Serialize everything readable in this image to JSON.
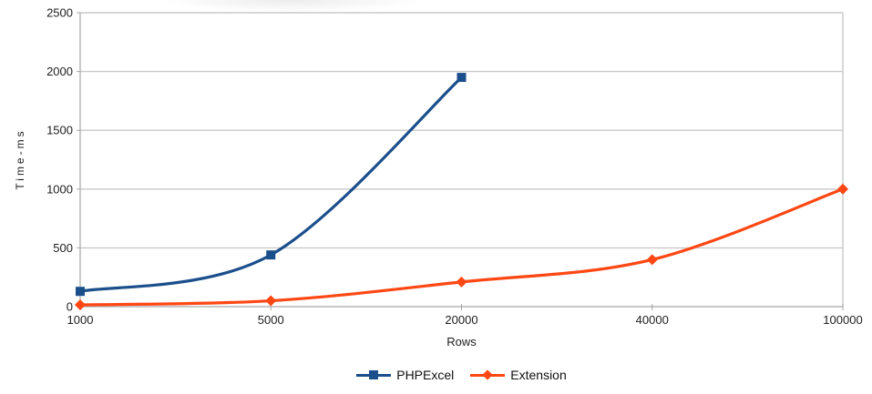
{
  "chart_data": {
    "type": "line",
    "title": "",
    "xlabel": "Rows",
    "ylabel": "Time-ms",
    "categories": [
      "1000",
      "5000",
      "20000",
      "40000",
      "100000"
    ],
    "yticks": [
      0,
      500,
      1000,
      1500,
      2000,
      2500
    ],
    "ylim": [
      0,
      2500
    ],
    "grid": "horizontal",
    "line_style": "smooth",
    "legend_position": "bottom-center",
    "series": [
      {
        "name": "PHPExcel",
        "marker": "square",
        "color": "#1b4f8c",
        "values": [
          130,
          440,
          1950
        ]
      },
      {
        "name": "Extension",
        "marker": "diamond",
        "color": "#ff4713",
        "values": [
          15,
          50,
          210,
          400,
          1000
        ]
      }
    ]
  }
}
